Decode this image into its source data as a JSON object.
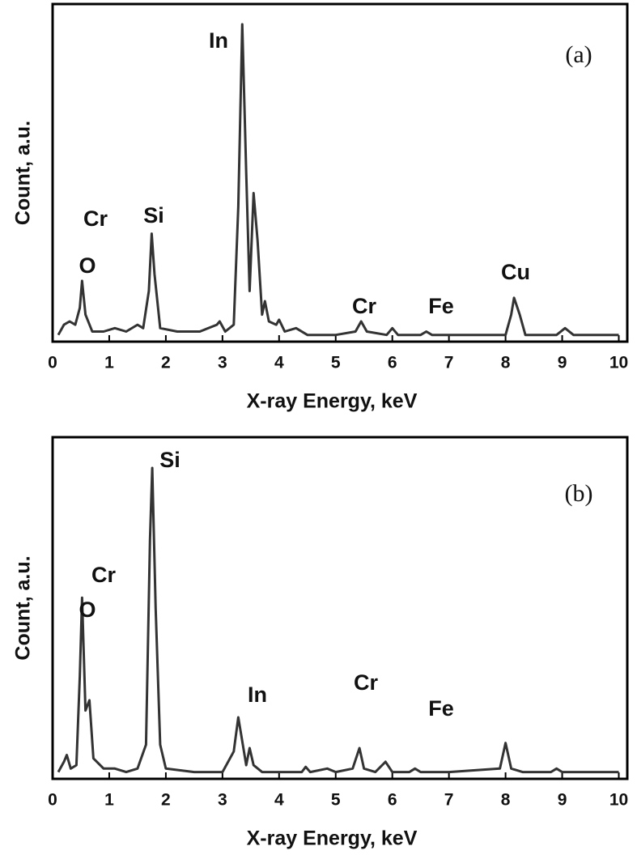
{
  "chart_data": [
    {
      "type": "line",
      "xlabel": "X-ray Energy, keV",
      "ylabel": "Count, a.u.",
      "xlim": [
        0,
        10.15
      ],
      "xticks": [
        0,
        1,
        2,
        3,
        4,
        5,
        6,
        7,
        8,
        9,
        10
      ],
      "ylim": [
        0,
        100
      ],
      "annotations": [
        "In",
        "Cr",
        "Si",
        "O",
        "Cr",
        "Fe",
        "Cu",
        "(a)"
      ],
      "series": [
        {
          "color": "#333333",
          "x": [
            0.1,
            0.2,
            0.3,
            0.4,
            0.48,
            0.52,
            0.58,
            0.7,
            0.9,
            1.1,
            1.3,
            1.5,
            1.6,
            1.7,
            1.75,
            1.8,
            1.9,
            2.2,
            2.6,
            2.9,
            2.95,
            3.05,
            3.2,
            3.28,
            3.35,
            3.42,
            3.48,
            3.55,
            3.62,
            3.7,
            3.75,
            3.82,
            3.95,
            4.0,
            4.1,
            4.3,
            4.5,
            5.0,
            5.35,
            5.45,
            5.55,
            5.9,
            6.0,
            6.1,
            6.5,
            6.6,
            6.7,
            7.5,
            8.0,
            8.1,
            8.15,
            8.25,
            8.35,
            8.9,
            9.05,
            9.2,
            10.0
          ],
          "values": [
            2,
            5,
            6,
            5,
            10,
            18,
            8,
            3,
            3,
            4,
            3,
            5,
            4,
            15,
            32,
            20,
            4,
            3,
            3,
            5,
            6,
            3,
            5,
            40,
            94,
            50,
            15,
            44,
            30,
            8,
            12,
            6,
            5,
            6.5,
            3,
            4,
            2,
            2,
            3,
            6,
            3,
            2,
            4,
            2,
            2,
            3,
            2,
            2,
            2,
            8,
            13,
            8,
            2,
            2,
            4,
            2,
            2
          ]
        }
      ]
    },
    {
      "type": "line",
      "xlabel": "X-ray Energy, keV",
      "ylabel": "Count, a.u.",
      "xlim": [
        0,
        10.15
      ],
      "xticks": [
        0,
        1,
        2,
        3,
        4,
        5,
        6,
        7,
        8,
        9,
        10
      ],
      "ylim": [
        0,
        100
      ],
      "annotations": [
        "Si",
        "Cr",
        "O",
        "In",
        "Cr",
        "Fe",
        "(b)"
      ],
      "series": [
        {
          "color": "#333333",
          "x": [
            0.1,
            0.2,
            0.25,
            0.32,
            0.42,
            0.48,
            0.52,
            0.58,
            0.65,
            0.72,
            0.9,
            1.1,
            1.3,
            1.5,
            1.65,
            1.72,
            1.76,
            1.82,
            1.9,
            2.0,
            2.5,
            3.0,
            3.2,
            3.28,
            3.36,
            3.42,
            3.48,
            3.55,
            3.7,
            4.4,
            4.47,
            4.55,
            4.85,
            5.0,
            5.3,
            5.42,
            5.5,
            5.7,
            5.88,
            6.0,
            6.3,
            6.4,
            6.5,
            7.0,
            7.9,
            8.0,
            8.1,
            8.3,
            8.8,
            8.9,
            9.0,
            10.0
          ],
          "values": [
            2,
            5,
            7,
            3,
            4,
            30,
            53,
            20,
            23,
            6,
            3,
            3,
            2,
            3,
            10,
            70,
            91,
            50,
            10,
            3,
            2,
            2,
            8,
            18,
            10,
            4,
            9,
            4,
            2,
            2,
            3.5,
            2,
            3,
            2,
            3,
            9,
            3,
            2,
            5,
            2,
            2,
            3,
            2,
            2,
            3,
            10.5,
            3,
            2,
            2,
            3,
            2,
            2
          ]
        }
      ]
    }
  ]
}
